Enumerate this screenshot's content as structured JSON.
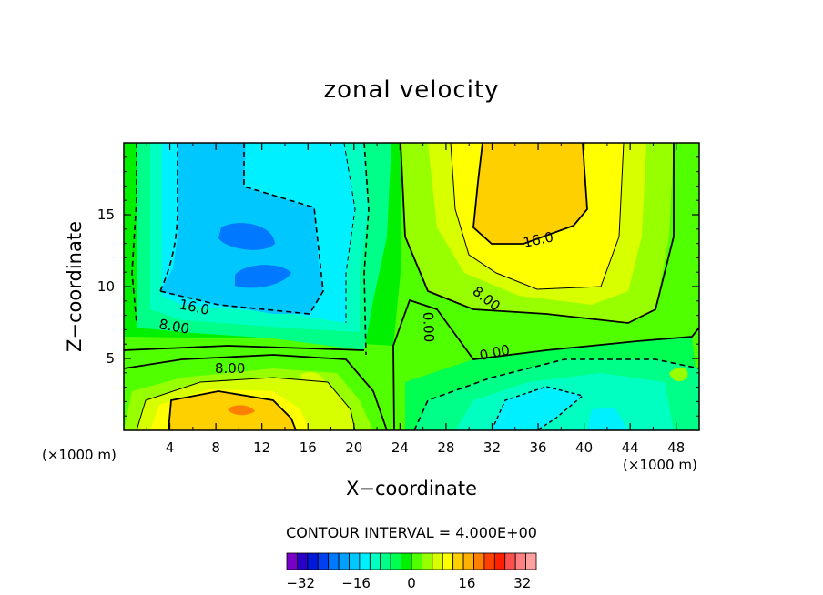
{
  "chart_data": {
    "type": "heatmap",
    "title": "zonal velocity",
    "xlabel": "X−coordinate",
    "ylabel": "Z−coordinate",
    "x_unit_label": "(×1000 m)",
    "xlim": [
      0,
      50
    ],
    "ylim": [
      0,
      20
    ],
    "x_ticks": [
      "4",
      "8",
      "12",
      "16",
      "20",
      "24",
      "28",
      "32",
      "36",
      "40",
      "44",
      "48"
    ],
    "y_ticks": [
      "5",
      "10",
      "15"
    ],
    "contour_interval_label": "CONTOUR INTERVAL = 4.000E+00",
    "contour_labels": [
      "16.0",
      "8.00",
      "8.00",
      "0.00",
      "16.0",
      "8.00",
      "0.00"
    ],
    "colorbar": {
      "min": -36,
      "max": 36,
      "step": 4,
      "tick_labels": [
        "−32",
        "−16",
        "0",
        "16",
        "32"
      ],
      "colors": [
        "#7a00c8",
        "#2a00c8",
        "#0018d8",
        "#0040f0",
        "#0078ff",
        "#00a0ff",
        "#00c8ff",
        "#00f0ff",
        "#00ffc0",
        "#00ff88",
        "#00ff50",
        "#00f000",
        "#50ff00",
        "#98ff00",
        "#d8ff00",
        "#ffff00",
        "#ffd000",
        "#ffb000",
        "#ff8000",
        "#ff4000",
        "#ff2000",
        "#ff5050",
        "#ff8080",
        "#ffa0a0"
      ]
    },
    "regions": [
      {
        "name": "upper-left-negative",
        "value_range": [
          -28,
          -12
        ],
        "location": "x 2–20, z 8–20"
      },
      {
        "name": "upper-right-positive",
        "value_range": [
          8,
          20
        ],
        "location": "x 28–40, z 12–20"
      },
      {
        "name": "lower-left-positive",
        "value_range": [
          8,
          28
        ],
        "location": "x 2–22, z 0–5"
      },
      {
        "name": "lower-right-negative",
        "value_range": [
          -12,
          0
        ],
        "location": "x 28–48, z 0–5"
      }
    ]
  }
}
